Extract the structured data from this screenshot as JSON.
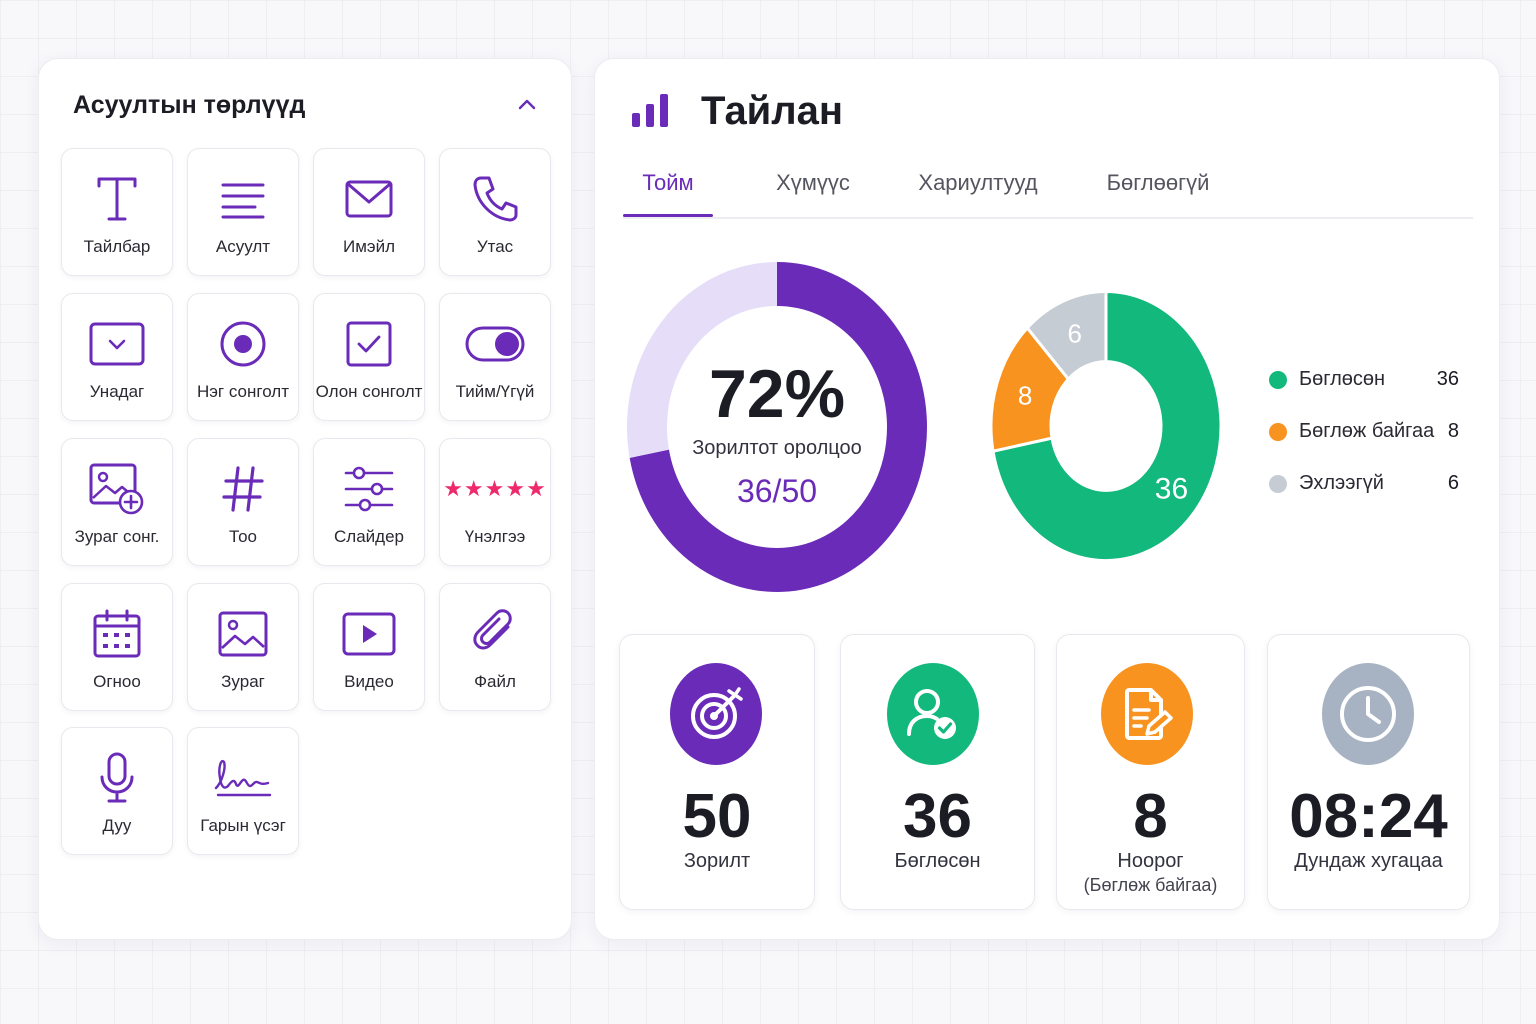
{
  "question_types": {
    "title": "Асуултын төрлүүд",
    "items": [
      {
        "label": "Тайлбар",
        "icon": "text-icon"
      },
      {
        "label": "Асуулт",
        "icon": "lines-icon"
      },
      {
        "label": "Имэйл",
        "icon": "mail-icon"
      },
      {
        "label": "Утас",
        "icon": "phone-icon"
      },
      {
        "label": "Унадаг",
        "icon": "dropdown-icon"
      },
      {
        "label": "Нэг сонголт",
        "icon": "radio-icon"
      },
      {
        "label": "Олон сонголт",
        "icon": "checkbox-icon"
      },
      {
        "label": "Тийм/Үгүй",
        "icon": "toggle-icon"
      },
      {
        "label": "Зураг сонг.",
        "icon": "image-add-icon"
      },
      {
        "label": "Тоо",
        "icon": "hash-icon"
      },
      {
        "label": "Слайдер",
        "icon": "slider-icon"
      },
      {
        "label": "Үнэлгээ",
        "icon": "star-rating-icon",
        "stars": "★★★★★"
      },
      {
        "label": "Огноо",
        "icon": "calendar-icon"
      },
      {
        "label": "Зураг",
        "icon": "image-icon"
      },
      {
        "label": "Видео",
        "icon": "video-icon"
      },
      {
        "label": "Файл",
        "icon": "paperclip-icon"
      },
      {
        "label": "Дуу",
        "icon": "microphone-icon"
      },
      {
        "label": "Гарын үсэг",
        "icon": "signature-icon"
      }
    ]
  },
  "report": {
    "title": "Тайлан",
    "tabs": [
      "Тойм",
      "Хүмүүс",
      "Хариултууд",
      "Бөглөөгүй"
    ],
    "active_tab": "Тойм"
  },
  "chart_data": [
    {
      "type": "pie",
      "variant": "donut",
      "values": [
        36,
        14
      ],
      "center_value": "72%",
      "center_label": "Зорилтот оролцоо",
      "center_fraction": "36/50",
      "colors": {
        "filled": "#6a2bb8",
        "remaining": "#e6ddf8"
      }
    },
    {
      "type": "pie",
      "variant": "donut",
      "categories": [
        "Бөглөсөн",
        "Бөглөж байгаа",
        "Эхлээгүй"
      ],
      "values": [
        36,
        8,
        6
      ],
      "data_labels": [
        "36",
        "8",
        "6"
      ],
      "colors": [
        "#12b87c",
        "#f7931e",
        "#c5ccd4"
      ],
      "legend": "right"
    }
  ],
  "stats": [
    {
      "value": "50",
      "caption": "Зорилт",
      "icon": "target-icon",
      "color": "#6a2bb8"
    },
    {
      "value": "36",
      "caption": "Бөглөсөн",
      "icon": "user-check-icon",
      "color": "#12b87c"
    },
    {
      "value": "8",
      "caption": "Ноорог",
      "caption2": "(Бөглөж байгаа)",
      "icon": "document-edit-icon",
      "color": "#f7931e"
    },
    {
      "value": "08:24",
      "caption": "Дундаж хугацаа",
      "icon": "clock-icon",
      "color": "#a7b3c2"
    }
  ],
  "colors": {
    "accent": "#6a2bb8",
    "green": "#12b87c",
    "orange": "#f7931e",
    "gray": "#c5ccd4"
  }
}
